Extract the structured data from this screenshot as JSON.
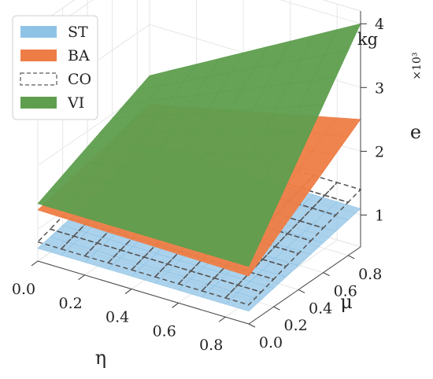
{
  "chart_data": {
    "type": "surface3d",
    "title": "",
    "xlabel": "η",
    "ylabel": "μ",
    "zlabel": "e",
    "z_unit": "kg",
    "z_multiplier": "×10³",
    "x_ticks": [
      "0.0",
      "0.2",
      "0.4",
      "0.6",
      "0.8"
    ],
    "y_ticks": [
      "0.0",
      "0.2",
      "0.4",
      "0.6",
      "0.8"
    ],
    "z_ticks": [
      "1",
      "2",
      "3",
      "4"
    ],
    "xlim": [
      0,
      0.9
    ],
    "ylim": [
      0,
      0.9
    ],
    "zlim": [
      0.5,
      4.2
    ],
    "grid": true,
    "legend_position": "top-left",
    "series": [
      {
        "name": "ST",
        "color": "#8fc3e6",
        "style": "solid",
        "corner_values": {
          "eta0_mu0": 0.7,
          "eta1_mu0": 0.7,
          "eta0_mu1": 1.1,
          "eta1_mu1": 1.1
        }
      },
      {
        "name": "BA",
        "color": "#ee7d45",
        "style": "solid",
        "corner_values": {
          "eta0_mu0": 1.3,
          "eta1_mu0": 1.25,
          "eta0_mu1": 1.75,
          "eta1_mu1": 2.5
        }
      },
      {
        "name": "CO",
        "color": "#9a9a9a",
        "style": "dashed",
        "corner_values": {
          "eta0_mu0": 0.8,
          "eta1_mu0": 0.8,
          "eta0_mu1": 1.4,
          "eta1_mu1": 1.4
        }
      },
      {
        "name": "VI",
        "color": "#5e9e4e",
        "style": "solid",
        "corner_values": {
          "eta0_mu0": 1.4,
          "eta1_mu0": 1.4,
          "eta0_mu1": 2.2,
          "eta1_mu1": 4.0
        }
      }
    ]
  }
}
